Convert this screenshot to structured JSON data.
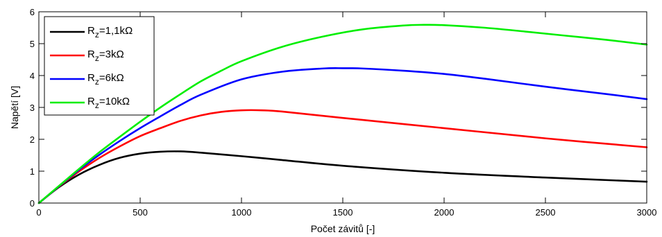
{
  "chart_data": {
    "type": "line",
    "title": "",
    "xlabel": "Počet závitů [-]",
    "ylabel": "Napětí [V]",
    "xlim": [
      0,
      3000
    ],
    "ylim": [
      0,
      6
    ],
    "xticks": [
      0,
      500,
      1000,
      1500,
      2000,
      2500,
      3000
    ],
    "yticks": [
      0,
      1,
      2,
      3,
      4,
      5,
      6
    ],
    "grid": false,
    "legend_position": "top-left",
    "series": [
      {
        "name": "R_z=1,1kΩ",
        "legend_main": "R",
        "legend_sub": "z",
        "legend_rest": "=1,1kΩ",
        "color": "#000000",
        "x": [
          0,
          100,
          200,
          300,
          400,
          500,
          600,
          700,
          800,
          1000,
          1200,
          1500,
          2000,
          2500,
          3000
        ],
        "y": [
          0,
          0.5,
          0.9,
          1.2,
          1.42,
          1.55,
          1.61,
          1.62,
          1.58,
          1.47,
          1.35,
          1.17,
          0.95,
          0.8,
          0.67
        ]
      },
      {
        "name": "R_z=3kΩ",
        "legend_main": "R",
        "legend_sub": "z",
        "legend_rest": "=3kΩ",
        "color": "#ff0000",
        "x": [
          0,
          100,
          200,
          300,
          400,
          500,
          600,
          700,
          800,
          900,
          1000,
          1100,
          1200,
          1500,
          2000,
          2500,
          3000
        ],
        "y": [
          0,
          0.52,
          1.0,
          1.42,
          1.78,
          2.1,
          2.35,
          2.58,
          2.75,
          2.86,
          2.91,
          2.91,
          2.87,
          2.67,
          2.35,
          2.03,
          1.75
        ]
      },
      {
        "name": "R_z=6kΩ",
        "legend_main": "R",
        "legend_sub": "z",
        "legend_rest": "=6kΩ",
        "color": "#0000ff",
        "x": [
          0,
          100,
          200,
          300,
          400,
          500,
          600,
          700,
          800,
          1000,
          1200,
          1400,
          1500,
          1600,
          1800,
          2000,
          2200,
          2500,
          2800,
          3000
        ],
        "y": [
          0,
          0.53,
          1.05,
          1.52,
          1.95,
          2.35,
          2.72,
          3.08,
          3.4,
          3.88,
          4.12,
          4.22,
          4.23,
          4.22,
          4.15,
          4.05,
          3.9,
          3.65,
          3.42,
          3.26
        ]
      },
      {
        "name": "R_z=10kΩ",
        "legend_main": "R",
        "legend_sub": "z",
        "legend_rest": "=10kΩ",
        "color": "#00ee00",
        "x": [
          0,
          100,
          200,
          300,
          400,
          500,
          600,
          700,
          800,
          900,
          1000,
          1200,
          1400,
          1600,
          1800,
          1900,
          2000,
          2200,
          2400,
          2600,
          2800,
          3000
        ],
        "y": [
          0,
          0.54,
          1.08,
          1.6,
          2.08,
          2.55,
          3.0,
          3.42,
          3.82,
          4.15,
          4.45,
          4.9,
          5.22,
          5.45,
          5.57,
          5.59,
          5.58,
          5.5,
          5.38,
          5.25,
          5.12,
          4.97
        ]
      }
    ]
  }
}
